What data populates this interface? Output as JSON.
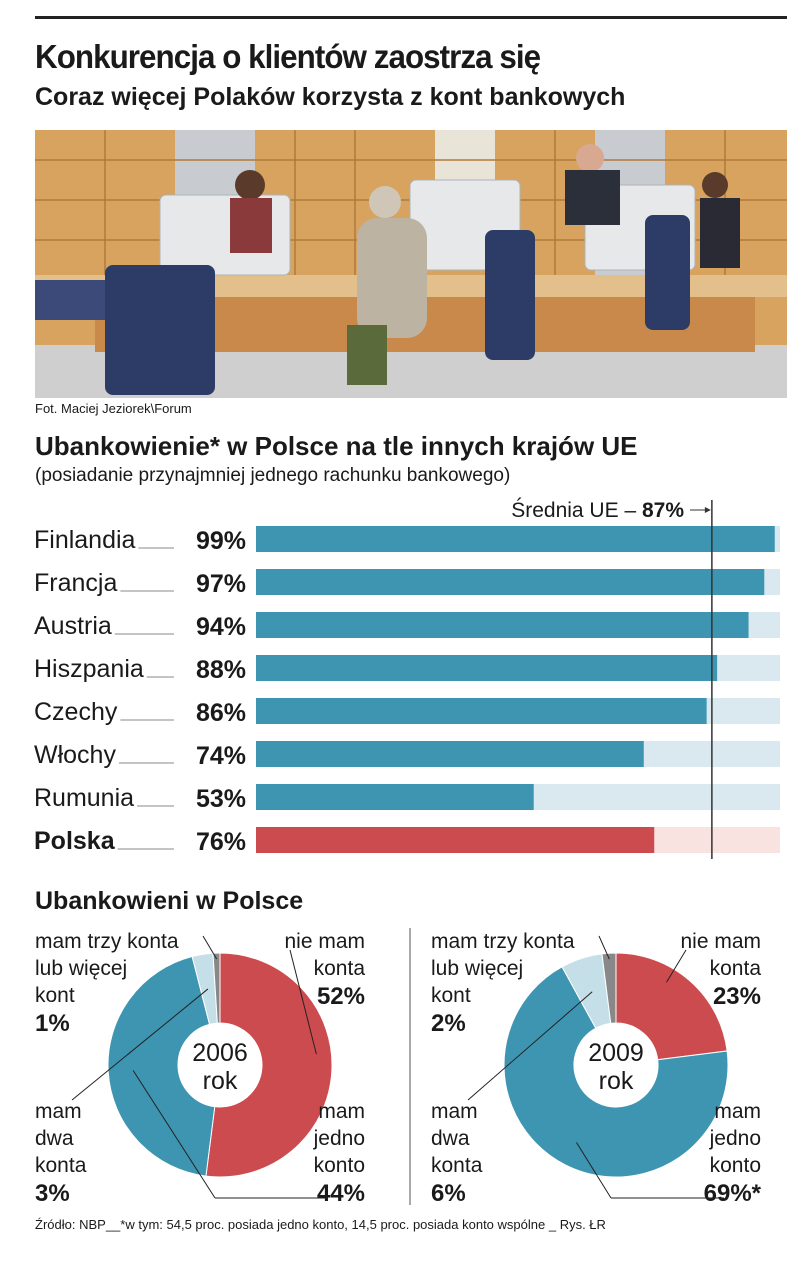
{
  "header": {
    "title": "Konkurencja o klientów zaostrza się",
    "subtitle": "Coraz więcej Polaków korzysta z kont bankowych",
    "photo_credit": "Fot. Maciej Jeziorek\\Forum"
  },
  "colors": {
    "bar": "#3e95b1",
    "bar_track": "#d9e9ef",
    "highlight": "#cc4b4f",
    "highlight_track": "#f8e3e1",
    "donut_blue": "#3e95b1",
    "donut_red": "#cc4b4f",
    "donut_light": "#c5dfe8",
    "donut_gray": "#888888"
  },
  "chart_data": [
    {
      "type": "bar",
      "title": "Ubankowienie* w Polsce na tle innych krajów UE",
      "subtitle": "(posiadanie przynajmniej jednego rachunku bankowego)",
      "orientation": "horizontal",
      "categories": [
        "Finlandia",
        "Francja",
        "Austria",
        "Hiszpania",
        "Czechy",
        "Włochy",
        "Rumunia",
        "Polska"
      ],
      "values": [
        99,
        97,
        94,
        88,
        86,
        74,
        53,
        76
      ],
      "value_labels": [
        "99%",
        "97%",
        "94%",
        "88%",
        "86%",
        "74%",
        "53%",
        "76%"
      ],
      "highlight": "Polska",
      "xlim": [
        0,
        100
      ],
      "reference_line": {
        "value": 87,
        "label": "Średnia UE – ",
        "value_label": "87%"
      }
    },
    {
      "type": "pie",
      "subtype": "donut",
      "section_title": "Ubankowieni w Polsce",
      "center_label": [
        "2006",
        "rok"
      ],
      "slices": [
        {
          "label": "nie mam konta",
          "lines": [
            "nie mam",
            "konta"
          ],
          "value": 52,
          "value_label": "52%",
          "color": "#cc4b4f"
        },
        {
          "label": "mam jedno konto",
          "lines": [
            "mam",
            "jedno",
            "konto"
          ],
          "value": 44,
          "value_label": "44%",
          "color": "#3e95b1"
        },
        {
          "label": "mam dwa konta",
          "lines": [
            "mam",
            "dwa",
            "konta"
          ],
          "value": 3,
          "value_label": "3%",
          "color": "#c5dfe8"
        },
        {
          "label": "mam trzy konta lub więcej kont",
          "lines": [
            "mam trzy konta",
            "lub więcej",
            "kont"
          ],
          "value": 1,
          "value_label": "1%",
          "color": "#888888"
        }
      ]
    },
    {
      "type": "pie",
      "subtype": "donut",
      "center_label": [
        "2009",
        "rok"
      ],
      "slices": [
        {
          "label": "nie mam konta",
          "lines": [
            "nie mam",
            "konta"
          ],
          "value": 23,
          "value_label": "23%",
          "color": "#cc4b4f"
        },
        {
          "label": "mam jedno konto",
          "lines": [
            "mam",
            "jedno",
            "konto"
          ],
          "value": 69,
          "value_label": "69%*",
          "color": "#3e95b1"
        },
        {
          "label": "mam dwa konta",
          "lines": [
            "mam",
            "dwa",
            "konta"
          ],
          "value": 6,
          "value_label": "6%",
          "color": "#c5dfe8"
        },
        {
          "label": "mam trzy konta lub więcej kont",
          "lines": [
            "mam trzy konta",
            "lub więcej",
            "kont"
          ],
          "value": 2,
          "value_label": "2%",
          "color": "#888888"
        }
      ]
    }
  ],
  "footer": {
    "source": "Źródło: NBP",
    "note": "*w tym: 54,5 proc. posiada jedno konto, 14,5 proc. posiada konto wspólne",
    "credit": "Rys. ŁR"
  }
}
